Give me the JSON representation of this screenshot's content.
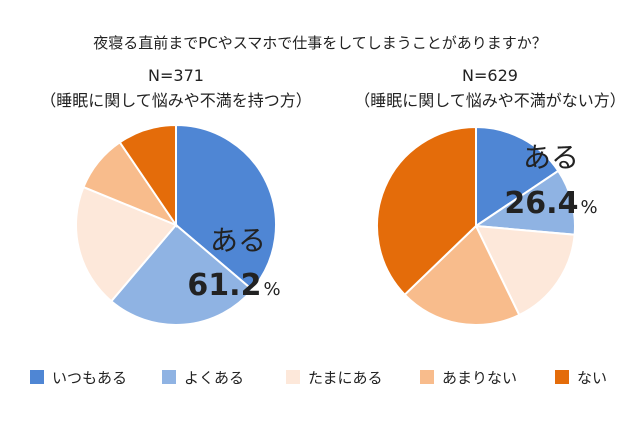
{
  "chart_data": {
    "type": "pie",
    "title": "夜寝る直前までPCやスマホで仕事をしてしまうことがありますか？",
    "categories": [
      "いつもある",
      "よくある",
      "たまにある",
      "あまりない",
      "ない"
    ],
    "colors": [
      "#4F86D4",
      "#8FB3E3",
      "#FDE8DA",
      "#F8BC8C",
      "#E46C0A"
    ],
    "charts": [
      {
        "n_label": "N=371",
        "group_label": "（睡眠に関して悩みや不満を持つ方）",
        "values": [
          36.2,
          25.0,
          20.0,
          9.3,
          9.5
        ],
        "callout": {
          "label": "ある",
          "value": "61.2",
          "unit": "%"
        }
      },
      {
        "n_label": "N=629",
        "group_label": "（睡眠に関して悩みや不満がない方）",
        "values": [
          15.6,
          10.8,
          16.4,
          20.0,
          37.2
        ],
        "callout": {
          "label": "ある",
          "value": "26.4",
          "unit": "%"
        }
      }
    ]
  }
}
